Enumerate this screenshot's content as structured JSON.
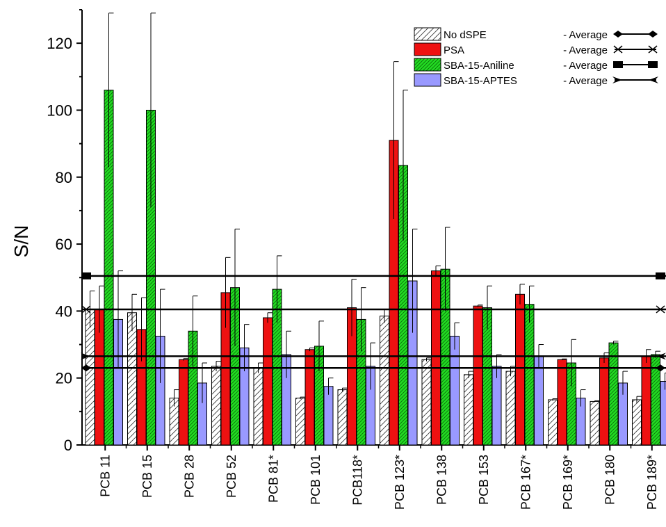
{
  "chart_data": {
    "type": "bar",
    "ylabel": "S/N",
    "xlabel": "",
    "ylim": [
      0,
      130
    ],
    "yticks": [
      0,
      20,
      40,
      60,
      80,
      100,
      120
    ],
    "grid": false,
    "legend_position": "top-right",
    "categories": [
      "PCB 11",
      "PCB 15",
      "PCB 28",
      "PCB 52",
      "PCB 81*",
      "PCB 101",
      "PCB118*",
      "PCB 123*",
      "PCB 138",
      "PCB 153",
      "PCB 167*",
      "PCB 169*",
      "PCB 180",
      "PCB 189*"
    ],
    "series": [
      {
        "name": "No dSPE",
        "color": "#ffffff",
        "pattern": "hatch-sparse",
        "values": [
          40.5,
          39.5,
          14,
          23.5,
          23,
          14,
          16.5,
          38.5,
          25.5,
          21,
          22,
          13.5,
          13,
          13.5
        ],
        "errors": [
          5.5,
          5.5,
          2.5,
          1.5,
          1.5,
          0.3,
          0.5,
          2,
          0.5,
          1,
          1.5,
          0.3,
          0.2,
          1
        ]
      },
      {
        "name": "PSA",
        "color": "#ee1111",
        "pattern": "solid",
        "values": [
          40.5,
          34.5,
          25.5,
          45.5,
          38,
          28.5,
          41,
          91,
          52,
          41.5,
          45,
          25.5,
          26,
          26.5
        ],
        "errors": [
          7,
          9.5,
          0.3,
          10.5,
          1.5,
          0.5,
          8.5,
          23.5,
          1.5,
          0.3,
          3,
          0.2,
          1.5,
          2
        ]
      },
      {
        "name": "SBA-15-Aniline",
        "color": "#22dd22",
        "pattern": "hatch-dense",
        "values": [
          106,
          100,
          34,
          47,
          46.5,
          29.5,
          37.5,
          83.5,
          52.5,
          41,
          42,
          24.5,
          30.5,
          27
        ],
        "errors": [
          23,
          29,
          10.5,
          17.5,
          10,
          7.5,
          9.5,
          22.5,
          12.5,
          6.5,
          5.5,
          7,
          0.5,
          1
        ]
      },
      {
        "name": "SBA-15-APTES",
        "color": "#9999ff",
        "pattern": "solid",
        "values": [
          37.5,
          32.5,
          18.5,
          29,
          27,
          17.5,
          23.5,
          49,
          32.5,
          23.5,
          26.5,
          14,
          18.5,
          19
        ],
        "errors": [
          14.5,
          14,
          6,
          7,
          7,
          2.5,
          7,
          15.5,
          4,
          3.5,
          3.5,
          2.5,
          3.5,
          2.5
        ]
      }
    ],
    "average_lines": [
      {
        "series": "No dSPE",
        "label": "- Average",
        "value": 23,
        "marker": "diamond"
      },
      {
        "series": "PSA",
        "label": "- Average",
        "value": 40.5,
        "marker": "cross"
      },
      {
        "series": "SBA-15-Aniline",
        "label": "- Average",
        "value": 50.5,
        "marker": "square"
      },
      {
        "series": "SBA-15-APTES",
        "label": "- Average",
        "value": 26.5,
        "marker": "arrow"
      }
    ]
  }
}
